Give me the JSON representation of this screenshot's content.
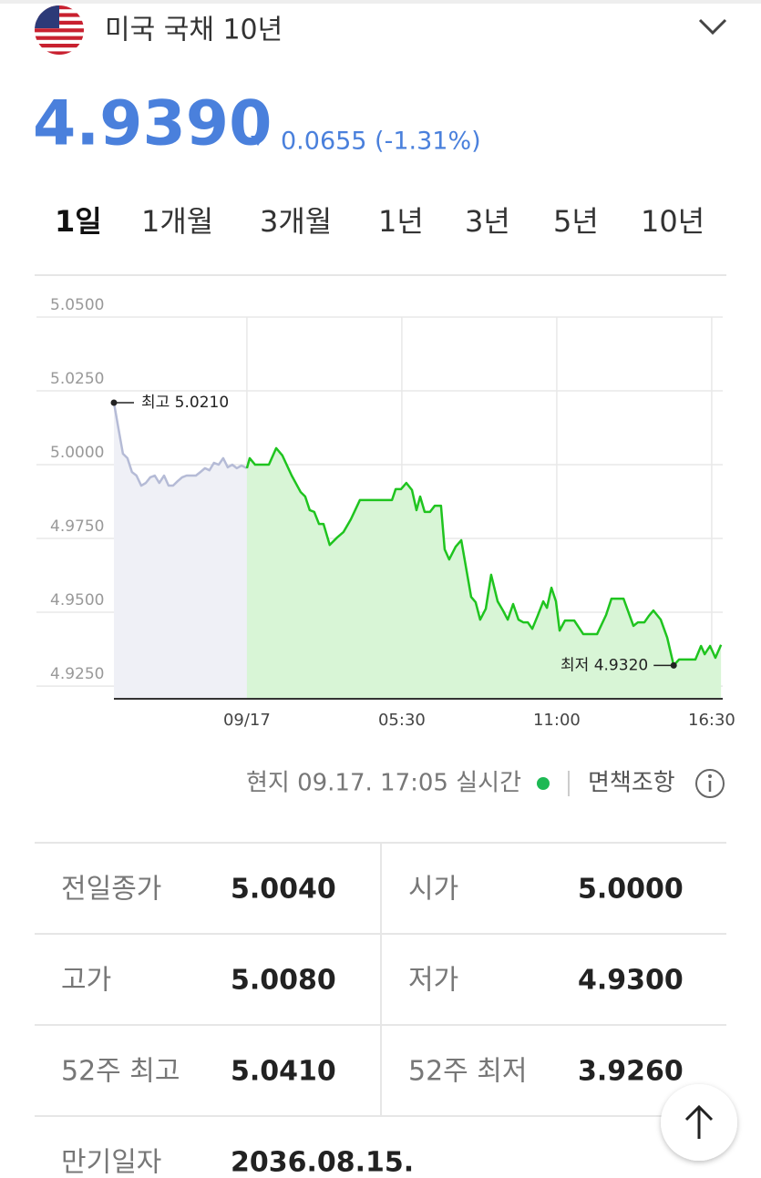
{
  "header": {
    "title": "미국 국채 10년"
  },
  "quote": {
    "price": "4.9390",
    "change": "0.0655 (-1.31%)"
  },
  "tabs": [
    "1일",
    "1개월",
    "3개월",
    "1년",
    "3년",
    "5년",
    "10년"
  ],
  "chart_data": {
    "type": "area",
    "series": [
      {
        "color": "#b5bbd6",
        "x": [
          -4.72,
          -4.56,
          -4.4,
          -4.24,
          -4.08,
          -3.92,
          -3.75,
          -3.59,
          -3.43,
          -3.27,
          -3.11,
          -2.94,
          -2.78,
          -2.62,
          -2.46,
          -2.3,
          -2.14,
          -1.81,
          -1.65,
          -1.49,
          -1.33,
          -1.17,
          -1.0,
          -0.84,
          -0.68,
          -0.52,
          -0.36,
          -0.19,
          0
        ],
        "values": [
          5.021,
          5.0123,
          5.0037,
          5.0022,
          4.9975,
          4.9963,
          4.9929,
          4.9938,
          4.9957,
          4.9963,
          4.9938,
          4.9963,
          4.9929,
          4.9929,
          4.9944,
          4.9957,
          4.9963,
          4.9963,
          4.9975,
          4.9988,
          4.9981,
          5.0006,
          5.0,
          5.0022,
          4.9991,
          5.0,
          4.9988,
          4.9997,
          4.9988
        ]
      },
      {
        "color": "#1fc41f",
        "x": [
          0,
          0.1,
          0.29,
          0.78,
          1.04,
          1.26,
          1.59,
          1.91,
          2.07,
          2.23,
          2.39,
          2.56,
          2.72,
          2.94,
          3.2,
          3.43,
          3.69,
          4.01,
          5.15,
          5.28,
          5.47,
          5.66,
          5.86,
          6.02,
          6.15,
          6.31,
          6.5,
          6.67,
          6.89,
          7.02,
          7.18,
          7.41,
          7.61,
          7.96,
          8.12,
          8.28,
          8.48,
          8.67,
          8.9,
          9.09,
          9.26,
          9.45,
          9.64,
          9.81,
          9.97,
          10.13,
          10.32,
          10.52,
          10.65,
          10.81,
          10.97,
          11.1,
          11.29,
          11.62,
          11.94,
          12.43,
          12.75,
          12.94,
          13.37,
          13.72,
          13.88,
          14.11,
          14.27,
          14.43,
          14.69,
          14.92,
          15.15,
          15.34,
          15.92,
          16.12,
          16.25,
          16.44,
          16.63,
          16.83
        ],
        "values": [
          4.9988,
          5.0022,
          5.0,
          5.0,
          5.0056,
          5.0031,
          4.9963,
          4.9907,
          4.9892,
          4.9846,
          4.984,
          4.9799,
          4.9799,
          4.9728,
          4.9753,
          4.9772,
          4.9815,
          4.988,
          4.988,
          4.9917,
          4.9917,
          4.9938,
          4.9914,
          4.9846,
          4.9892,
          4.984,
          4.984,
          4.9861,
          4.9861,
          4.9713,
          4.9679,
          4.9722,
          4.9744,
          4.9552,
          4.9534,
          4.9475,
          4.9512,
          4.9627,
          4.9537,
          4.9506,
          4.9475,
          4.9528,
          4.9475,
          4.9466,
          4.9466,
          4.9444,
          4.9488,
          4.9537,
          4.9515,
          4.9583,
          4.9537,
          4.9438,
          4.9472,
          4.9472,
          4.9426,
          4.9426,
          4.9491,
          4.9546,
          4.9546,
          4.9454,
          4.9466,
          4.9466,
          4.9488,
          4.9506,
          4.9475,
          4.9414,
          4.932,
          4.934,
          4.934,
          4.9386,
          4.9358,
          4.9386,
          4.9346,
          4.939
        ]
      }
    ],
    "xlim": [
      -4.72,
      16.89
    ],
    "xticks": [
      {
        "value": 0,
        "label": "09/17"
      },
      {
        "value": 5.5,
        "label": "05:30"
      },
      {
        "value": 11,
        "label": "11:00"
      },
      {
        "value": 16.5,
        "label": "16:30"
      }
    ],
    "ylim": [
      4.9207,
      5.05
    ],
    "yticks": [
      {
        "value": 5.05,
        "label": "5.0500"
      },
      {
        "value": 5.025,
        "label": "5.0250"
      },
      {
        "value": 5.0,
        "label": "5.0000"
      },
      {
        "value": 4.975,
        "label": "4.9750"
      },
      {
        "value": 4.95,
        "label": "4.9500"
      },
      {
        "value": 4.925,
        "label": "4.9250"
      }
    ],
    "grid": true,
    "annotations": [
      {
        "label": "최고 5.0210",
        "x": -4.72,
        "y": 5.021
      },
      {
        "label": "최저 4.9320",
        "x": 15.15,
        "y": 4.932
      }
    ]
  },
  "status": {
    "text": "현지 09.17. 17:05 실시간",
    "disclaimer": "면책조항"
  },
  "table": {
    "rows": [
      [
        "전일종가",
        "5.0040",
        "시가",
        "5.0000"
      ],
      [
        "고가",
        "5.0080",
        "저가",
        "4.9300"
      ],
      [
        "52주 최고",
        "5.0410",
        "52주 최저",
        "3.9260"
      ],
      [
        "만기일자",
        "2036.08.15."
      ]
    ]
  }
}
